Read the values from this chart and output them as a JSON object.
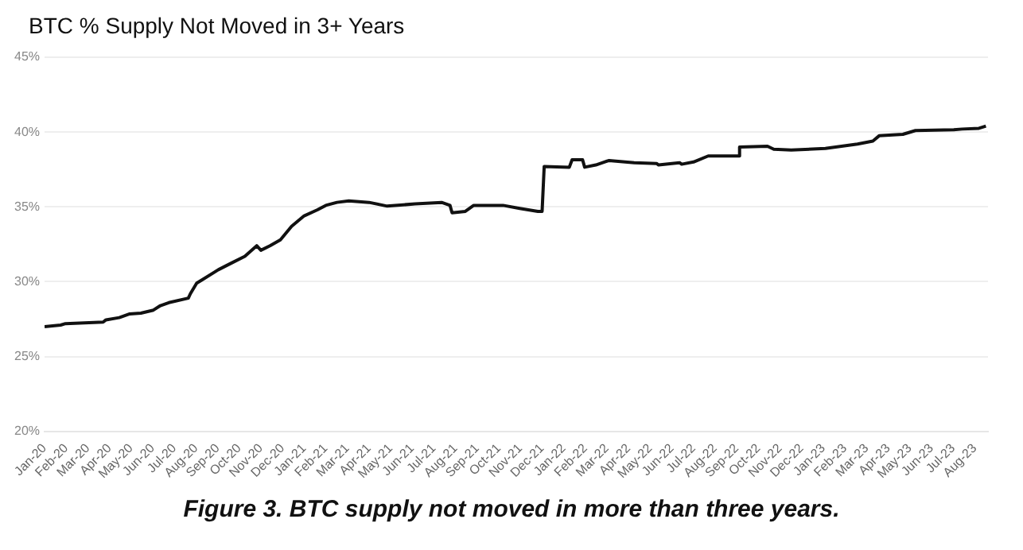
{
  "chart_data": {
    "type": "line",
    "title": "BTC % Supply Not Moved in 3+ Years",
    "annotations": [
      "Figure 3. BTC supply not moved in more than three years."
    ],
    "x": [
      "2020-01-01",
      "2020-01-24",
      "2020-01-31",
      "2020-03-23",
      "2020-03-27",
      "2020-04-15",
      "2020-04-30",
      "2020-05-15",
      "2020-06-02",
      "2020-06-12",
      "2020-06-24",
      "2020-07-21",
      "2020-07-24",
      "2020-08-02",
      "2020-08-09",
      "2020-09-02",
      "2020-09-21",
      "2020-10-09",
      "2020-10-26",
      "2020-11-01",
      "2020-11-14",
      "2020-11-29",
      "2020-12-14",
      "2021-01-01",
      "2021-01-20",
      "2021-02-01",
      "2021-02-17",
      "2021-03-03",
      "2021-04-01",
      "2021-04-27",
      "2021-06-05",
      "2021-07-12",
      "2021-07-24",
      "2021-07-27",
      "2021-08-15",
      "2021-08-27",
      "2021-10-07",
      "2021-10-31",
      "2021-11-26",
      "2021-12-01",
      "2021-12-04",
      "2022-01-09",
      "2022-01-13",
      "2022-01-28",
      "2022-01-31",
      "2022-02-16",
      "2022-03-04",
      "2022-04-09",
      "2022-05-10",
      "2022-05-13",
      "2022-06-12",
      "2022-06-15",
      "2022-07-01",
      "2022-07-22",
      "2022-09-04",
      "2022-09-05",
      "2022-10-14",
      "2022-10-23",
      "2022-11-17",
      "2023-01-04",
      "2023-02-19",
      "2023-03-10",
      "2023-03-19",
      "2023-04-22",
      "2023-05-09",
      "2023-07-02",
      "2023-07-14",
      "2023-08-07",
      "2023-08-17"
    ],
    "series": [
      {
        "color": "#111111",
        "values": [
          27.0,
          27.1,
          27.2,
          27.3,
          27.45,
          27.6,
          27.85,
          27.9,
          28.1,
          28.4,
          28.6,
          28.9,
          29.2,
          29.9,
          30.1,
          30.8,
          31.25,
          31.7,
          32.4,
          32.1,
          32.4,
          32.8,
          33.7,
          34.4,
          34.8,
          35.1,
          35.3,
          35.4,
          35.3,
          35.05,
          35.2,
          35.3,
          35.1,
          34.6,
          34.7,
          35.1,
          35.1,
          34.9,
          34.7,
          34.7,
          37.7,
          37.65,
          38.15,
          38.15,
          37.65,
          37.8,
          38.1,
          37.95,
          37.9,
          37.8,
          37.95,
          37.85,
          38.0,
          38.4,
          38.4,
          39.0,
          39.05,
          38.85,
          38.8,
          38.9,
          39.2,
          39.4,
          39.75,
          39.85,
          40.1,
          40.15,
          40.2,
          40.25,
          40.4
        ]
      }
    ],
    "xlim": [
      "2020-01-01",
      "2023-08-20"
    ],
    "xticks": [
      {
        "value": "2020-01",
        "label": "Jan-20"
      },
      {
        "value": "2020-02",
        "label": "Feb-20"
      },
      {
        "value": "2020-03",
        "label": "Mar-20"
      },
      {
        "value": "2020-04",
        "label": "Apr-20"
      },
      {
        "value": "2020-05",
        "label": "May-20"
      },
      {
        "value": "2020-06",
        "label": "Jun-20"
      },
      {
        "value": "2020-07",
        "label": "Jul-20"
      },
      {
        "value": "2020-08",
        "label": "Aug-20"
      },
      {
        "value": "2020-09",
        "label": "Sep-20"
      },
      {
        "value": "2020-10",
        "label": "Oct-20"
      },
      {
        "value": "2020-11",
        "label": "Nov-20"
      },
      {
        "value": "2020-12",
        "label": "Dec-20"
      },
      {
        "value": "2021-01",
        "label": "Jan-21"
      },
      {
        "value": "2021-02",
        "label": "Feb-21"
      },
      {
        "value": "2021-03",
        "label": "Mar-21"
      },
      {
        "value": "2021-04",
        "label": "Apr-21"
      },
      {
        "value": "2021-05",
        "label": "May-21"
      },
      {
        "value": "2021-06",
        "label": "Jun-21"
      },
      {
        "value": "2021-07",
        "label": "Jul-21"
      },
      {
        "value": "2021-08",
        "label": "Aug-21"
      },
      {
        "value": "2021-09",
        "label": "Sep-21"
      },
      {
        "value": "2021-10",
        "label": "Oct-21"
      },
      {
        "value": "2021-11",
        "label": "Nov-21"
      },
      {
        "value": "2021-12",
        "label": "Dec-21"
      },
      {
        "value": "2022-01",
        "label": "Jan-22"
      },
      {
        "value": "2022-02",
        "label": "Feb-22"
      },
      {
        "value": "2022-03",
        "label": "Mar-22"
      },
      {
        "value": "2022-04",
        "label": "Apr-22"
      },
      {
        "value": "2022-05",
        "label": "May-22"
      },
      {
        "value": "2022-06",
        "label": "Jun-22"
      },
      {
        "value": "2022-07",
        "label": "Jul-22"
      },
      {
        "value": "2022-08",
        "label": "Aug-22"
      },
      {
        "value": "2022-09",
        "label": "Sep-22"
      },
      {
        "value": "2022-10",
        "label": "Oct-22"
      },
      {
        "value": "2022-11",
        "label": "Nov-22"
      },
      {
        "value": "2022-12",
        "label": "Dec-22"
      },
      {
        "value": "2023-01",
        "label": "Jan-23"
      },
      {
        "value": "2023-02",
        "label": "Feb-23"
      },
      {
        "value": "2023-03",
        "label": "Mar-23"
      },
      {
        "value": "2023-04",
        "label": "Apr-23"
      },
      {
        "value": "2023-05",
        "label": "May-23"
      },
      {
        "value": "2023-06",
        "label": "Jun-23"
      },
      {
        "value": "2023-07",
        "label": "Jul-23"
      },
      {
        "value": "2023-08",
        "label": "Aug-23"
      }
    ],
    "ylim": [
      20,
      45
    ],
    "yticks": [
      {
        "value": 20,
        "label": "20%"
      },
      {
        "value": 25,
        "label": "25%"
      },
      {
        "value": 30,
        "label": "30%"
      },
      {
        "value": 35,
        "label": "35%"
      },
      {
        "value": 40,
        "label": "40%"
      },
      {
        "value": 45,
        "label": "45%"
      }
    ],
    "grid": "y",
    "legend": false
  }
}
